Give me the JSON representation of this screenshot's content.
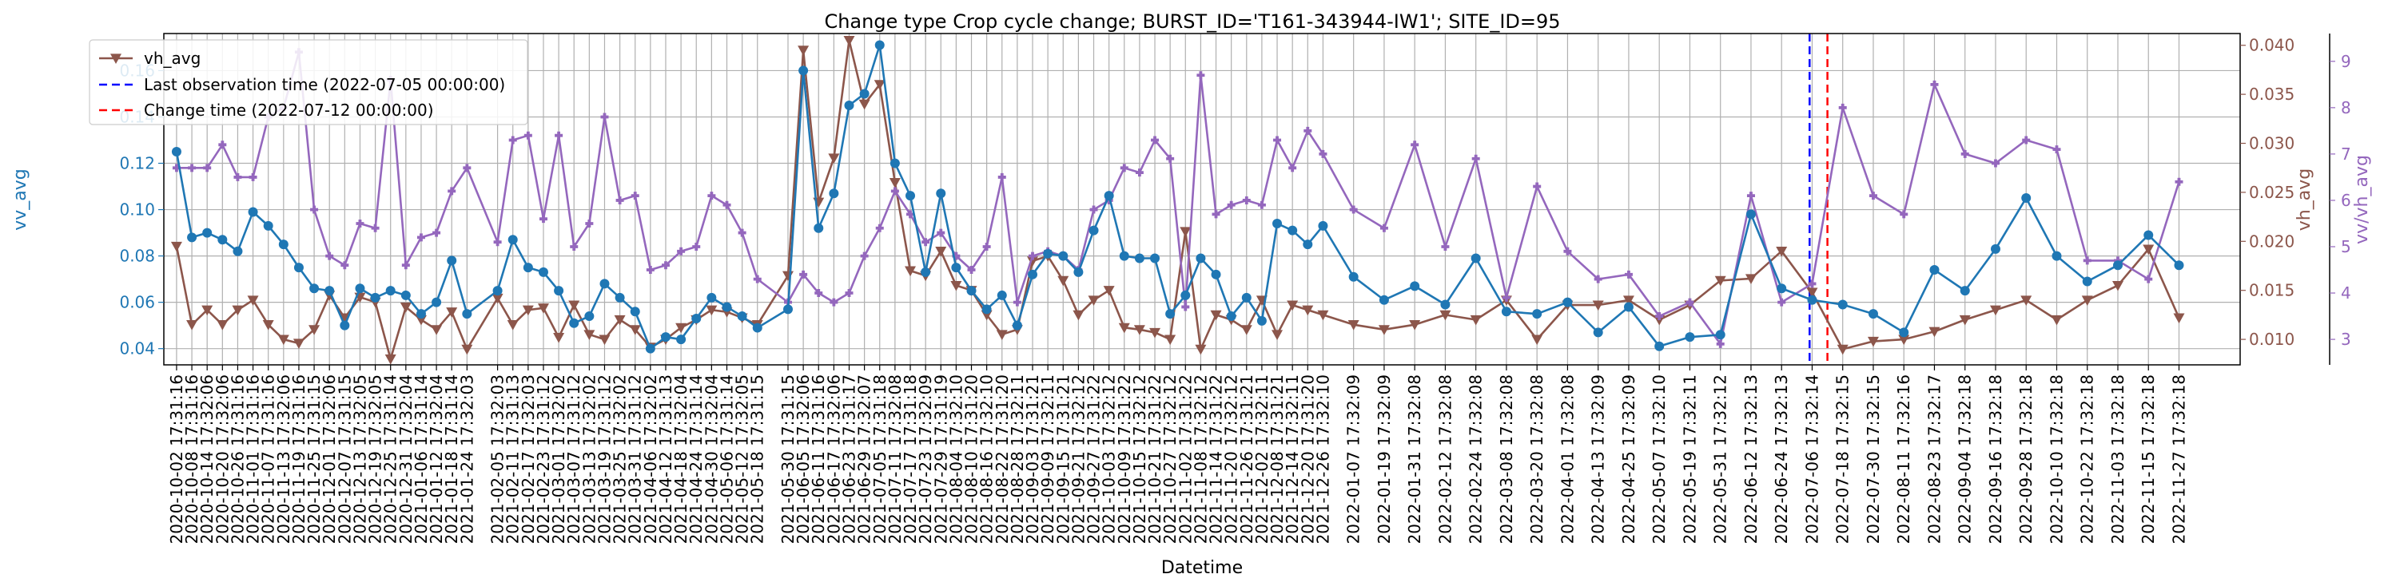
{
  "chart_data": {
    "type": "line",
    "title": "Change type Crop cycle change; BURST_ID='T161-343944-IW1'; SITE_ID=95",
    "xlabel": "Datetime",
    "x_tick_labels": [
      "2020-10-02 17:31:16",
      "2020-10-08 17:31:16",
      "2020-10-14 17:32:06",
      "2020-10-20 17:32:06",
      "2020-10-26 17:31:16",
      "2020-11-01 17:31:16",
      "2020-11-07 17:31:16",
      "2020-11-13 17:32:06",
      "2020-11-19 17:31:16",
      "2020-11-25 17:31:15",
      "2020-12-01 17:32:06",
      "2020-12-07 17:31:15",
      "2020-12-13 17:32:05",
      "2020-12-19 17:32:05",
      "2020-12-25 17:31:14",
      "2020-12-31 17:32:04",
      "2021-01-06 17:31:14",
      "2021-01-12 17:32:04",
      "2021-01-18 17:31:14",
      "2021-01-24 17:32:03",
      "2021-02-05 17:32:03",
      "2021-02-11 17:31:13",
      "2021-02-17 17:32:03",
      "2021-02-23 17:31:12",
      "2021-03-01 17:32:02",
      "2021-03-07 17:31:12",
      "2021-03-13 17:32:02",
      "2021-03-19 17:31:12",
      "2021-03-25 17:32:02",
      "2021-03-31 17:31:12",
      "2021-04-06 17:32:02",
      "2021-04-12 17:31:13",
      "2021-04-18 17:32:04",
      "2021-04-24 17:31:14",
      "2021-04-30 17:32:04",
      "2021-05-06 17:31:14",
      "2021-05-12 17:32:05",
      "2021-05-18 17:31:15",
      "2021-05-30 17:31:15",
      "2021-06-05 17:32:06",
      "2021-06-11 17:31:16",
      "2021-06-17 17:32:06",
      "2021-06-23 17:31:17",
      "2021-06-29 17:32:07",
      "2021-07-05 17:31:18",
      "2021-07-11 17:32:08",
      "2021-07-17 17:31:18",
      "2021-07-23 17:32:09",
      "2021-07-29 17:31:19",
      "2021-08-04 17:32:10",
      "2021-08-10 17:31:20",
      "2021-08-16 17:32:10",
      "2021-08-22 17:31:20",
      "2021-08-28 17:32:11",
      "2021-09-03 17:31:21",
      "2021-09-09 17:32:11",
      "2021-09-15 17:31:21",
      "2021-09-21 17:32:12",
      "2021-09-27 17:31:22",
      "2021-10-03 17:32:12",
      "2021-10-09 17:31:22",
      "2021-10-15 17:32:12",
      "2021-10-21 17:31:22",
      "2021-10-27 17:32:12",
      "2021-11-02 17:31:22",
      "2021-11-08 17:32:12",
      "2021-11-14 17:31:22",
      "2021-11-20 17:32:12",
      "2021-11-26 17:31:21",
      "2021-12-02 17:32:11",
      "2021-12-08 17:31:21",
      "2021-12-14 17:32:11",
      "2021-12-20 17:31:20",
      "2021-12-26 17:32:10",
      "2022-01-07 17:32:09",
      "2022-01-19 17:32:09",
      "2022-01-31 17:32:08",
      "2022-02-12 17:32:08",
      "2022-02-24 17:32:08",
      "2022-03-08 17:32:08",
      "2022-03-20 17:32:08",
      "2022-04-01 17:32:08",
      "2022-04-13 17:32:09",
      "2022-04-25 17:32:09",
      "2022-05-07 17:32:10",
      "2022-05-19 17:32:11",
      "2022-05-31 17:32:12",
      "2022-06-12 17:32:13",
      "2022-06-24 17:32:13",
      "2022-07-06 17:32:14",
      "2022-07-18 17:32:15",
      "2022-07-30 17:32:15",
      "2022-08-11 17:32:16",
      "2022-08-23 17:32:17",
      "2022-09-04 17:32:18",
      "2022-09-16 17:32:18",
      "2022-09-28 17:32:18",
      "2022-10-10 17:32:18",
      "2022-10-22 17:32:18",
      "2022-11-03 17:32:18",
      "2022-11-15 17:32:18",
      "2022-11-27 17:32:18"
    ],
    "x_range": [
      "2020-09-27",
      "2022-12-21"
    ],
    "axes": {
      "vv_avg": {
        "label": "vv_avg",
        "color": "#1f77b4",
        "ylim": [
          0.033,
          0.176
        ],
        "ticks": [
          0.04,
          0.06,
          0.08,
          0.1,
          0.12,
          0.14,
          0.16
        ],
        "tick_labels": [
          "0.04",
          "0.06",
          "0.08",
          "0.10",
          "0.12",
          "0.14",
          "0.16"
        ]
      },
      "vh_avg": {
        "label": "vh_avg",
        "color": "#8c564b",
        "ylim": [
          0.0074,
          0.0412
        ],
        "ticks": [
          0.01,
          0.015,
          0.02,
          0.025,
          0.03,
          0.035,
          0.04
        ],
        "tick_labels": [
          "0.010",
          "0.015",
          "0.020",
          "0.025",
          "0.030",
          "0.035",
          "0.040"
        ]
      },
      "ratio": {
        "label": "vv/vh_avg",
        "color": "#9467bd",
        "ylim": [
          2.45,
          9.6
        ],
        "ticks": [
          3,
          4,
          5,
          6,
          7,
          8,
          9
        ],
        "tick_labels": [
          "3",
          "4",
          "5",
          "6",
          "7",
          "8",
          "9"
        ]
      }
    },
    "series": [
      {
        "name": "vv_avg",
        "axis": "vv_avg",
        "color": "#1f77b4",
        "marker": "circle",
        "values": [
          0.125,
          0.088,
          0.09,
          0.087,
          0.082,
          0.099,
          0.093,
          0.085,
          0.075,
          0.066,
          0.065,
          0.05,
          0.066,
          0.062,
          0.065,
          0.063,
          0.055,
          0.06,
          0.078,
          0.055,
          0.065,
          0.087,
          0.075,
          0.073,
          0.065,
          0.051,
          0.054,
          0.068,
          0.062,
          0.056,
          0.04,
          0.045,
          0.044,
          0.053,
          0.062,
          0.058,
          0.054,
          0.049,
          0.057,
          0.16,
          0.092,
          0.107,
          0.145,
          0.15,
          0.171,
          0.12,
          0.106,
          0.073,
          0.107,
          0.075,
          0.065,
          0.057,
          0.063,
          0.05,
          0.072,
          0.081,
          0.08,
          0.073,
          0.091,
          0.106,
          0.08,
          0.079,
          0.079,
          0.055,
          0.063,
          0.079,
          0.072,
          0.054,
          0.062,
          0.052,
          0.094,
          0.091,
          0.085,
          0.093,
          0.071,
          0.061,
          0.067,
          0.059,
          0.079,
          0.056,
          0.055,
          0.06,
          0.047,
          0.058,
          0.041,
          0.045,
          0.046,
          0.098,
          0.066,
          0.061,
          0.059,
          0.055,
          0.047,
          0.074,
          0.065,
          0.083,
          0.105,
          0.08,
          0.069,
          0.076,
          0.089,
          0.076
        ]
      },
      {
        "name": "vh_avg",
        "axis": "vh_avg",
        "color": "#8c564b",
        "marker": "triangle-down",
        "values": [
          0.0195,
          0.0115,
          0.013,
          0.0115,
          0.013,
          0.014,
          0.0115,
          0.01,
          0.0096,
          0.011,
          0.0145,
          0.0122,
          0.0143,
          0.0138,
          0.008,
          0.0133,
          0.012,
          0.011,
          0.0128,
          0.009,
          0.0142,
          0.0115,
          0.013,
          0.0132,
          0.0102,
          0.0135,
          0.0105,
          0.01,
          0.012,
          0.011,
          0.0092,
          0.01,
          0.0112,
          0.012,
          0.013,
          0.0128,
          0.0122,
          0.0115,
          0.0165,
          0.0395,
          0.024,
          0.0285,
          0.0405,
          0.034,
          0.036,
          0.026,
          0.017,
          0.0165,
          0.019,
          0.0155,
          0.015,
          0.0125,
          0.0105,
          0.011,
          0.018,
          0.0185,
          0.016,
          0.0125,
          0.014,
          0.015,
          0.0112,
          0.011,
          0.0107,
          0.01,
          0.021,
          0.009,
          0.0125,
          0.012,
          0.011,
          0.014,
          0.0105,
          0.0135,
          0.013,
          0.0125,
          0.0115,
          0.011,
          0.0115,
          0.0125,
          0.012,
          0.014,
          0.01,
          0.0135,
          0.0135,
          0.014,
          0.012,
          0.0135,
          0.016,
          0.0162,
          0.019,
          0.0148,
          0.009,
          0.0098,
          0.01,
          0.0108,
          0.012,
          0.013,
          0.014,
          0.012,
          0.014,
          0.0155,
          0.0192,
          0.0122
        ]
      },
      {
        "name": "",
        "axis": "ratio",
        "color": "#9467bd",
        "marker": "plus",
        "values": [
          6.7,
          6.7,
          6.7,
          7.2,
          6.5,
          6.5,
          7.8,
          8.0,
          9.2,
          5.8,
          4.8,
          4.6,
          5.5,
          5.4,
          8.6,
          4.6,
          5.2,
          5.3,
          6.2,
          6.7,
          5.1,
          7.3,
          7.4,
          5.6,
          7.4,
          5.0,
          5.5,
          7.8,
          6.0,
          6.1,
          4.5,
          4.6,
          4.9,
          5.0,
          6.1,
          5.9,
          5.3,
          4.3,
          3.8,
          4.4,
          4.0,
          3.8,
          4.0,
          4.8,
          5.4,
          6.2,
          5.7,
          5.1,
          5.3,
          4.8,
          4.5,
          5.0,
          6.5,
          3.8,
          4.8,
          4.9,
          4.8,
          4.5,
          5.8,
          6.0,
          6.7,
          6.6,
          7.3,
          6.9,
          3.7,
          8.7,
          5.7,
          5.9,
          6.0,
          5.9,
          7.3,
          6.7,
          7.5,
          7.0,
          5.8,
          5.4,
          7.2,
          5.0,
          6.9,
          3.9,
          6.3,
          4.9,
          4.3,
          4.4,
          3.5,
          3.8,
          2.9,
          6.1,
          3.8,
          4.2,
          8.0,
          6.1,
          5.7,
          8.5,
          7.0,
          6.8,
          7.3,
          7.1,
          4.7,
          4.7,
          4.3,
          6.4
        ]
      }
    ],
    "vlines": [
      {
        "label": "Last observation time (2022-07-05 00:00:00)",
        "date": "2022-07-05",
        "color": "#0000ff",
        "style": "dashed"
      },
      {
        "label": "Change time (2022-07-12 00:00:00)",
        "date": "2022-07-12",
        "color": "#ff0000",
        "style": "dashed"
      }
    ],
    "legend": {
      "placement": "top-left",
      "entries": [
        "vh_avg",
        "Last observation time (2022-07-05 00:00:00)",
        "Change time (2022-07-12 00:00:00)"
      ]
    },
    "grid": true
  }
}
